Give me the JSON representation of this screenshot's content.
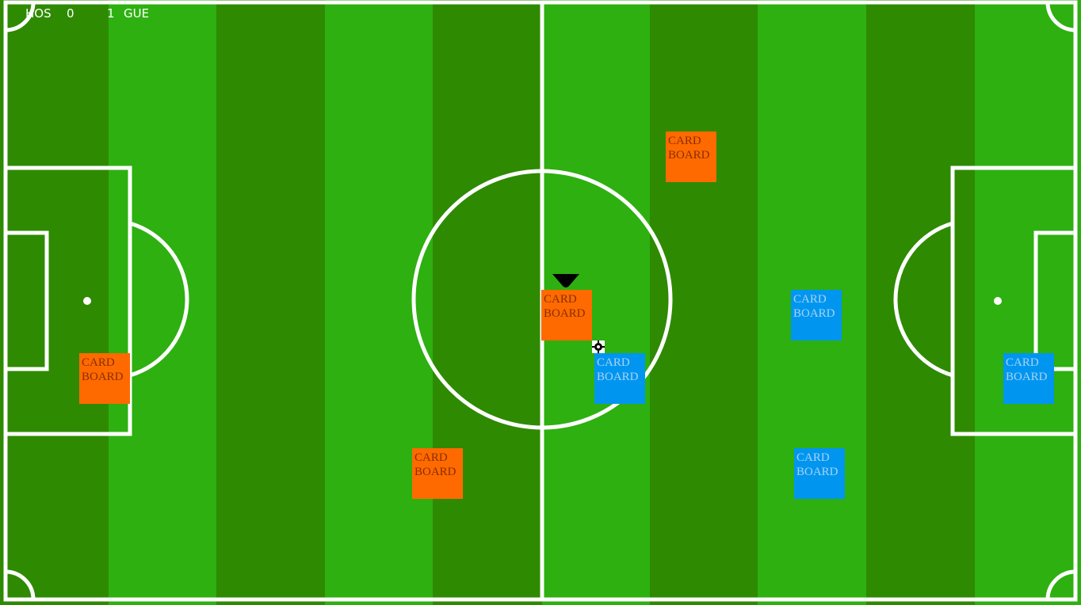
{
  "scoreboard": {
    "home_label": "HOS",
    "home_score": "0",
    "guest_score": "1",
    "guest_label": "GUE"
  },
  "colors": {
    "grass_dark": "#2e8a00",
    "grass_light": "#2db010",
    "lines": "#ffffff",
    "home_team": "#ff6a00",
    "guest_team": "#0096f0"
  },
  "icons": {
    "ball": "soccer-ball-icon",
    "active_marker": "down-triangle-icon"
  },
  "players": {
    "home": [
      {
        "line1": "CARD",
        "line2": "BOARD"
      },
      {
        "line1": "CARD",
        "line2": "BOARD"
      },
      {
        "line1": "CARD",
        "line2": "BOARD"
      },
      {
        "line1": "CARD",
        "line2": "BOARD"
      }
    ],
    "guest": [
      {
        "line1": "CARD",
        "line2": "BOARD"
      },
      {
        "line1": "CARD",
        "line2": "BOARD"
      },
      {
        "line1": "CARD",
        "line2": "BOARD"
      },
      {
        "line1": "CARD",
        "line2": "BOARD"
      }
    ]
  }
}
